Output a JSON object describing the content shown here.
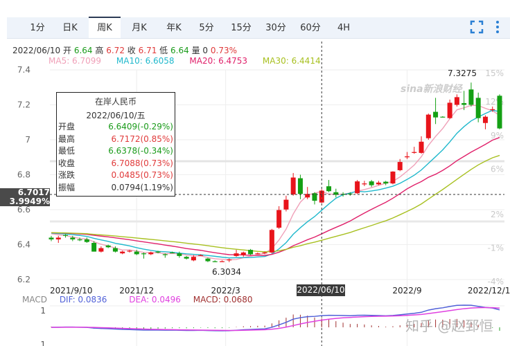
{
  "tabs": [
    {
      "label": "1分"
    },
    {
      "label": "日K"
    },
    {
      "label": "周K",
      "active": true
    },
    {
      "label": "月K"
    },
    {
      "label": "年K"
    },
    {
      "label": "5分"
    },
    {
      "label": "15分"
    },
    {
      "label": "30分"
    },
    {
      "label": "60分"
    },
    {
      "label": "4H"
    }
  ],
  "toolbar": {
    "fullscreen_icon": "fullscreen-icon",
    "more_icon": "more-vertical-icon"
  },
  "info": {
    "date": "2022/06/10",
    "open_label": "开",
    "open": "6.64",
    "high_label": "高",
    "high": "6.72",
    "close_label": "收",
    "close": "6.71",
    "low_label": "低",
    "low": "6.64",
    "vol_label": "量",
    "vol": "0",
    "change": "0.73%"
  },
  "ma": {
    "ma5": "MA5: 6.7099",
    "ma10": "MA10: 6.6058",
    "ma20": "MA20: 6.4753",
    "ma30": "MA30: 6.4414"
  },
  "colors": {
    "up": "#e8141b",
    "down": "#14a014",
    "ma5": "#f0a0b8",
    "ma10": "#1fb8cc",
    "ma20": "#e0206a",
    "ma30": "#a8c020",
    "dif": "#5060d8",
    "dea": "#e040e0",
    "macd": "#a03030"
  },
  "tooltip": {
    "title": "在岸人民币",
    "date": "2022/06/10/五",
    "rows": [
      {
        "label": "开盘",
        "value": "6.6409(-0.29%)",
        "color": "g"
      },
      {
        "label": "最高",
        "value": "6.7172(0.85%)",
        "color": "r"
      },
      {
        "label": "最低",
        "value": "6.6378(-0.34%)",
        "color": "g"
      },
      {
        "label": "收盘",
        "value": "6.7088(0.73%)",
        "color": "r"
      },
      {
        "label": "涨跌",
        "value": "0.0485(0.73%)",
        "color": "r"
      },
      {
        "label": "振幅",
        "value": "0.0794(1.19%)",
        "color": ""
      }
    ]
  },
  "crosshair": {
    "price": "6.7017",
    "percent": "3.9949%",
    "date": "2022/06/10"
  },
  "annotations": {
    "max": "7.3275",
    "min": "6.3034"
  },
  "macd": {
    "label": "MACD",
    "dif": "DIF: 0.0836",
    "dea": "DEA: 0.0496",
    "macd": "MACD: 0.0680",
    "ticks": [
      "1",
      "1"
    ]
  },
  "watermarks": {
    "zhihu": "知乎 @赵郅恒",
    "sina": "sina新浪财经"
  },
  "chart_data": {
    "type": "candlestick",
    "title": "",
    "ylim": [
      6.2,
      7.4
    ],
    "y_ticks": [
      "7.4",
      "7.2",
      "7",
      "6.8",
      "6.6",
      "6.4",
      "6.2"
    ],
    "y_right_ticks": [
      "15%",
      "12%",
      "9%",
      "6%",
      "2%",
      "-1%",
      "-4%"
    ],
    "x_ticks": [
      {
        "label": "2021/9/10",
        "index": 0
      },
      {
        "label": "2021/12",
        "index": 12
      },
      {
        "label": "2022/3",
        "index": 24.5
      },
      {
        "label": "2022/9",
        "index": 50
      },
      {
        "label": "2022/12/1",
        "index": 61.5
      }
    ],
    "grid": true,
    "ohlc": [
      [
        6.44,
        6.45,
        6.42,
        6.43
      ],
      [
        6.43,
        6.45,
        6.41,
        6.44
      ],
      [
        6.455,
        6.46,
        6.44,
        6.45
      ],
      [
        6.44,
        6.45,
        6.42,
        6.43
      ],
      [
        6.43,
        6.44,
        6.42,
        6.425
      ],
      [
        6.43,
        6.44,
        6.41,
        6.415
      ],
      [
        6.41,
        6.42,
        6.36,
        6.36
      ],
      [
        6.36,
        6.39,
        6.355,
        6.38
      ],
      [
        6.395,
        6.4,
        6.38,
        6.385
      ],
      [
        6.38,
        6.39,
        6.355,
        6.36
      ],
      [
        6.35,
        6.365,
        6.345,
        6.36
      ],
      [
        6.36,
        6.37,
        6.355,
        6.365
      ],
      [
        6.36,
        6.37,
        6.34,
        6.345
      ],
      [
        6.35,
        6.355,
        6.32,
        6.345
      ],
      [
        6.345,
        6.36,
        6.34,
        6.355
      ],
      [
        6.36,
        6.365,
        6.35,
        6.355
      ],
      [
        6.345,
        6.35,
        6.325,
        6.34
      ],
      [
        6.355,
        6.36,
        6.35,
        6.352
      ],
      [
        6.35,
        6.36,
        6.325,
        6.335
      ],
      [
        6.33,
        6.335,
        6.315,
        6.32
      ],
      [
        6.31,
        6.34,
        6.305,
        6.33
      ],
      [
        6.34,
        6.345,
        6.335,
        6.34
      ],
      [
        6.32,
        6.325,
        6.3,
        6.305
      ],
      [
        6.305,
        6.31,
        6.3,
        6.3
      ],
      [
        6.3,
        6.31,
        6.3034,
        6.305
      ],
      [
        6.31,
        6.32,
        6.3,
        6.315
      ],
      [
        6.335,
        6.37,
        6.33,
        6.35
      ],
      [
        6.34,
        6.36,
        6.33,
        6.355
      ],
      [
        6.37,
        6.375,
        6.34,
        6.345
      ],
      [
        6.35,
        6.355,
        6.345,
        6.35
      ],
      [
        6.35,
        6.36,
        6.345,
        6.355
      ],
      [
        6.355,
        6.49,
        6.35,
        6.484
      ],
      [
        6.497,
        6.62,
        6.49,
        6.598
      ],
      [
        6.601,
        6.68,
        6.59,
        6.657
      ],
      [
        6.687,
        6.81,
        6.68,
        6.784
      ],
      [
        6.78,
        6.8,
        6.66,
        6.69
      ],
      [
        6.67,
        6.73,
        6.66,
        6.69
      ],
      [
        6.694,
        6.7,
        6.63,
        6.651
      ],
      [
        6.641,
        6.7172,
        6.6378,
        6.709
      ],
      [
        6.734,
        6.77,
        6.7,
        6.706
      ],
      [
        6.7,
        6.72,
        6.67,
        6.685
      ],
      [
        6.69,
        6.7,
        6.675,
        6.688
      ],
      [
        6.692,
        6.7,
        6.68,
        6.69
      ],
      [
        6.694,
        6.77,
        6.69,
        6.762
      ],
      [
        6.745,
        6.765,
        6.735,
        6.75
      ],
      [
        6.762,
        6.77,
        6.73,
        6.74
      ],
      [
        6.745,
        6.765,
        6.74,
        6.755
      ],
      [
        6.76,
        6.765,
        6.74,
        6.75
      ],
      [
        6.75,
        6.82,
        6.745,
        6.818
      ],
      [
        6.826,
        6.89,
        6.82,
        6.873
      ],
      [
        6.9,
        6.93,
        6.89,
        6.905
      ],
      [
        6.925,
        6.96,
        6.92,
        6.93
      ],
      [
        6.925,
        7.02,
        6.92,
        6.989
      ],
      [
        7.009,
        7.15,
        7.0,
        7.144
      ],
      [
        7.16,
        7.24,
        7.09,
        7.128
      ],
      [
        7.132,
        7.135,
        7.128,
        7.13
      ],
      [
        7.124,
        7.23,
        7.12,
        7.212
      ],
      [
        7.2,
        7.26,
        7.19,
        7.244
      ],
      [
        7.21,
        7.28,
        7.17,
        7.2
      ],
      [
        7.288,
        7.3275,
        7.19,
        7.2
      ],
      [
        7.24,
        7.27,
        7.1,
        7.124
      ],
      [
        7.096,
        7.14,
        7.06,
        7.132
      ],
      [
        7.17,
        7.19,
        7.16,
        7.175
      ],
      [
        7.252,
        7.26,
        7.06,
        7.065
      ]
    ]
  }
}
